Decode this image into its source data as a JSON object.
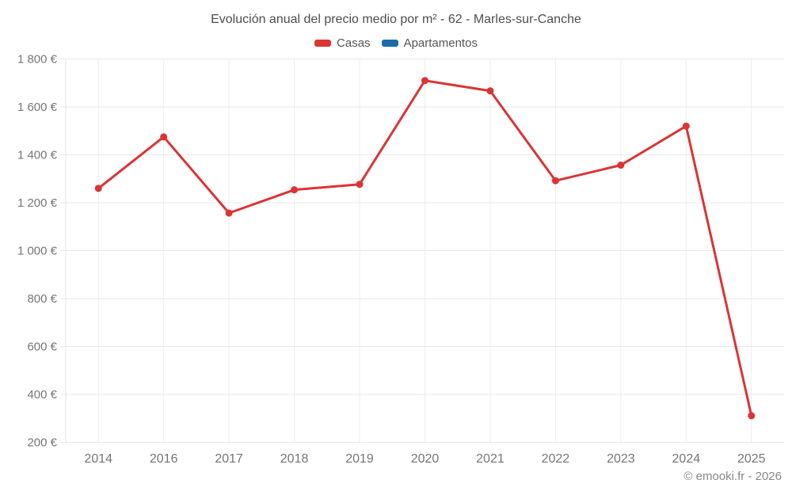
{
  "chart": {
    "title": "Evolución anual del precio medio por m² - 62 - Marles-sur-Canche",
    "attribution": "© emooki.fr - 2026",
    "legend": [
      {
        "label": "Casas",
        "color": "#db3434"
      },
      {
        "label": "Apartamentos",
        "color": "#1b6ca8"
      }
    ]
  },
  "chart_data": {
    "type": "line",
    "title": "Evolución anual del precio medio por m² - 62 - Marles-sur-Canche",
    "categories": [
      "2014",
      "2016",
      "2017",
      "2018",
      "2019",
      "2020",
      "2021",
      "2022",
      "2023",
      "2024",
      "2025"
    ],
    "series": [
      {
        "name": "Casas",
        "color": "#db3434",
        "values": [
          1260,
          1475,
          1157,
          1254,
          1277,
          1710,
          1667,
          1292,
          1357,
          1520,
          311
        ]
      },
      {
        "name": "Apartamentos",
        "color": "#1b6ca8",
        "values": []
      }
    ],
    "xlabel": "",
    "ylabel": "",
    "ylim": [
      200,
      1800
    ],
    "y_ticks": [
      200,
      400,
      600,
      800,
      1000,
      1200,
      1400,
      1600,
      1800
    ],
    "y_tick_labels": [
      "200 €",
      "400 €",
      "600 €",
      "800 €",
      "1 000 €",
      "1 200 €",
      "1 400 €",
      "1 600 €",
      "1 800 €"
    ],
    "grid": true,
    "legend_position": "top"
  }
}
